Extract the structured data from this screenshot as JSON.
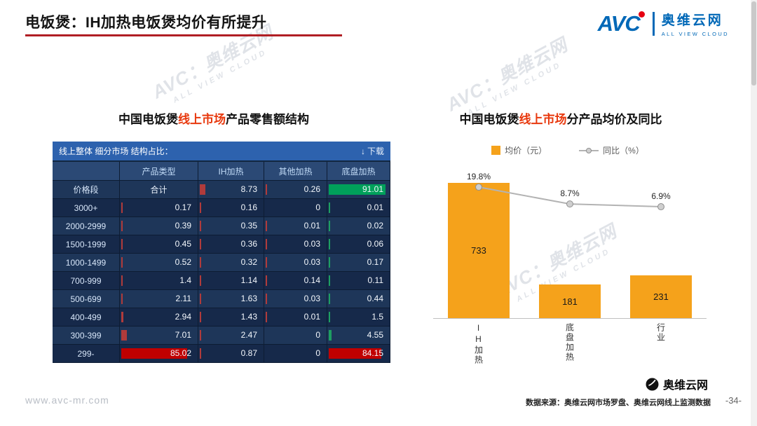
{
  "header": {
    "title": "电饭煲：IH加热电饭煲均价有所提升",
    "logo": {
      "text": "AVC",
      "cn": "奥维云网",
      "en": "ALL VIEW CLOUD"
    }
  },
  "watermark": {
    "line1": "AVC：奥维云网",
    "line2": "ALL VIEW CLOUD"
  },
  "left_panel": {
    "title_prefix": "中国电饭煲",
    "title_highlight": "线上市场",
    "title_suffix": "产品零售额结构",
    "toolbar": {
      "title": "线上整体 细分市场 结构占比：",
      "download": "下载"
    }
  },
  "right_panel": {
    "title_prefix": "中国电饭煲",
    "title_highlight": "线上市场",
    "title_suffix": "分产品均价及同比"
  },
  "footer": {
    "url": "www.avc-mr.com",
    "source": "数据来源：奥维云网市场罗盘、奥维云网线上监测数据",
    "page": "-34-",
    "brand": "奥维云网"
  },
  "colors": {
    "accent_red": "#C00000",
    "highlight_green": "#00A05A",
    "bar_red": "#B03B3B",
    "bar_orange": "#F5A21B",
    "line_gray": "#B3B3B3",
    "logo_blue": "#0068B7",
    "table_bg": "#122741",
    "title_underline": "#B01E24"
  },
  "chart_data": [
    {
      "type": "table",
      "title": "中国电饭煲线上市场产品零售额结构",
      "col_headers": [
        "",
        "产品类型",
        "IH加热",
        "其他加热",
        "底盘加热"
      ],
      "row_dim_label": "价格段",
      "rows": [
        {
          "label": "价格段",
          "cells": [
            "合计",
            "8.73",
            "0.26",
            "91.01"
          ]
        },
        {
          "label": "3000+",
          "cells": [
            "0.17",
            "0.16",
            "0",
            "0.01"
          ]
        },
        {
          "label": "2000-2999",
          "cells": [
            "0.39",
            "0.35",
            "0.01",
            "0.02"
          ]
        },
        {
          "label": "1500-1999",
          "cells": [
            "0.45",
            "0.36",
            "0.03",
            "0.06"
          ]
        },
        {
          "label": "1000-1499",
          "cells": [
            "0.52",
            "0.32",
            "0.03",
            "0.17"
          ]
        },
        {
          "label": "700-999",
          "cells": [
            "1.4",
            "1.14",
            "0.14",
            "0.11"
          ]
        },
        {
          "label": "500-699",
          "cells": [
            "2.11",
            "1.63",
            "0.03",
            "0.44"
          ]
        },
        {
          "label": "400-499",
          "cells": [
            "2.94",
            "1.43",
            "0.01",
            "1.5"
          ]
        },
        {
          "label": "300-399",
          "cells": [
            "7.01",
            "2.47",
            "0",
            "4.55"
          ]
        },
        {
          "label": "299-",
          "cells": [
            "85.02",
            "0.87",
            "0",
            "84.15"
          ]
        }
      ],
      "bar_colors_by_col": [
        "#B03B3B",
        "#B03B3B",
        "#B03B3B",
        "#1E9E62"
      ],
      "overrides": [
        {
          "row": 0,
          "col": 3,
          "color": "#00A05A"
        },
        {
          "row": 9,
          "col": 0,
          "color": "#C00000"
        },
        {
          "row": 9,
          "col": 3,
          "color": "#C00000"
        }
      ]
    },
    {
      "type": "bar",
      "title": "中国电饭煲线上市场分产品均价及同比",
      "categories": [
        "IH加热",
        "底盘加热",
        "行业"
      ],
      "series": [
        {
          "name": "均价（元）",
          "type": "bar",
          "values": [
            733,
            181,
            231
          ],
          "color": "#F5A21B"
        },
        {
          "name": "同比（%）",
          "type": "line",
          "values": [
            19.8,
            8.7,
            6.9
          ],
          "labels": [
            "19.8%",
            "8.7%",
            "6.9%"
          ],
          "color": "#B3B3B3"
        }
      ],
      "legend_position": "top",
      "grid": false
    }
  ]
}
